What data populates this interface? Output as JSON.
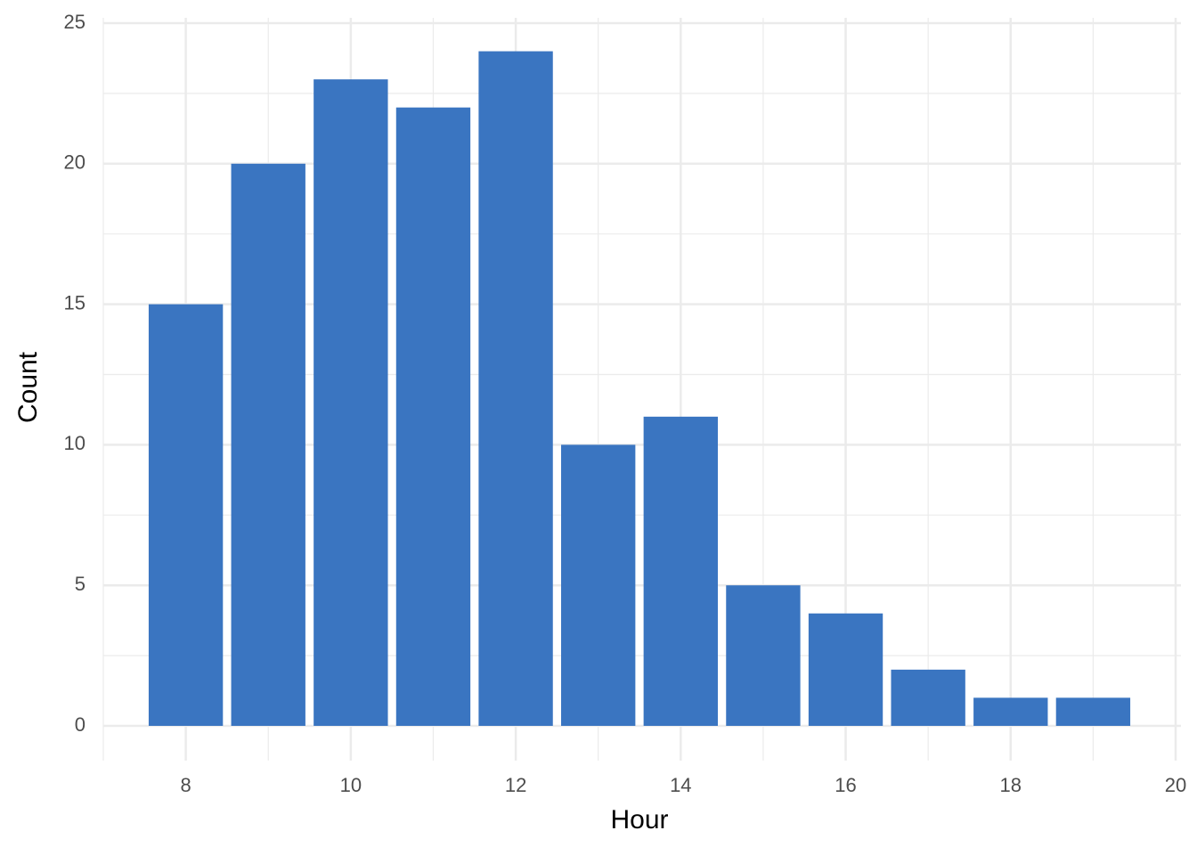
{
  "chart_data": {
    "type": "bar",
    "x_label": "Hour",
    "y_label": "Count",
    "x": [
      8,
      9,
      10,
      11,
      12,
      13,
      14,
      15,
      16,
      17,
      18,
      19
    ],
    "values": [
      15,
      20,
      23,
      22,
      24,
      10,
      11,
      5,
      4,
      2,
      1,
      1
    ],
    "color": "#3a75c1",
    "xlim": [
      7,
      20
    ],
    "xticks": [
      8,
      10,
      12,
      14,
      16,
      18,
      20
    ],
    "ylim": [
      0,
      25
    ],
    "yticks": [
      0,
      5,
      10,
      15,
      20,
      25
    ],
    "grid": true
  }
}
